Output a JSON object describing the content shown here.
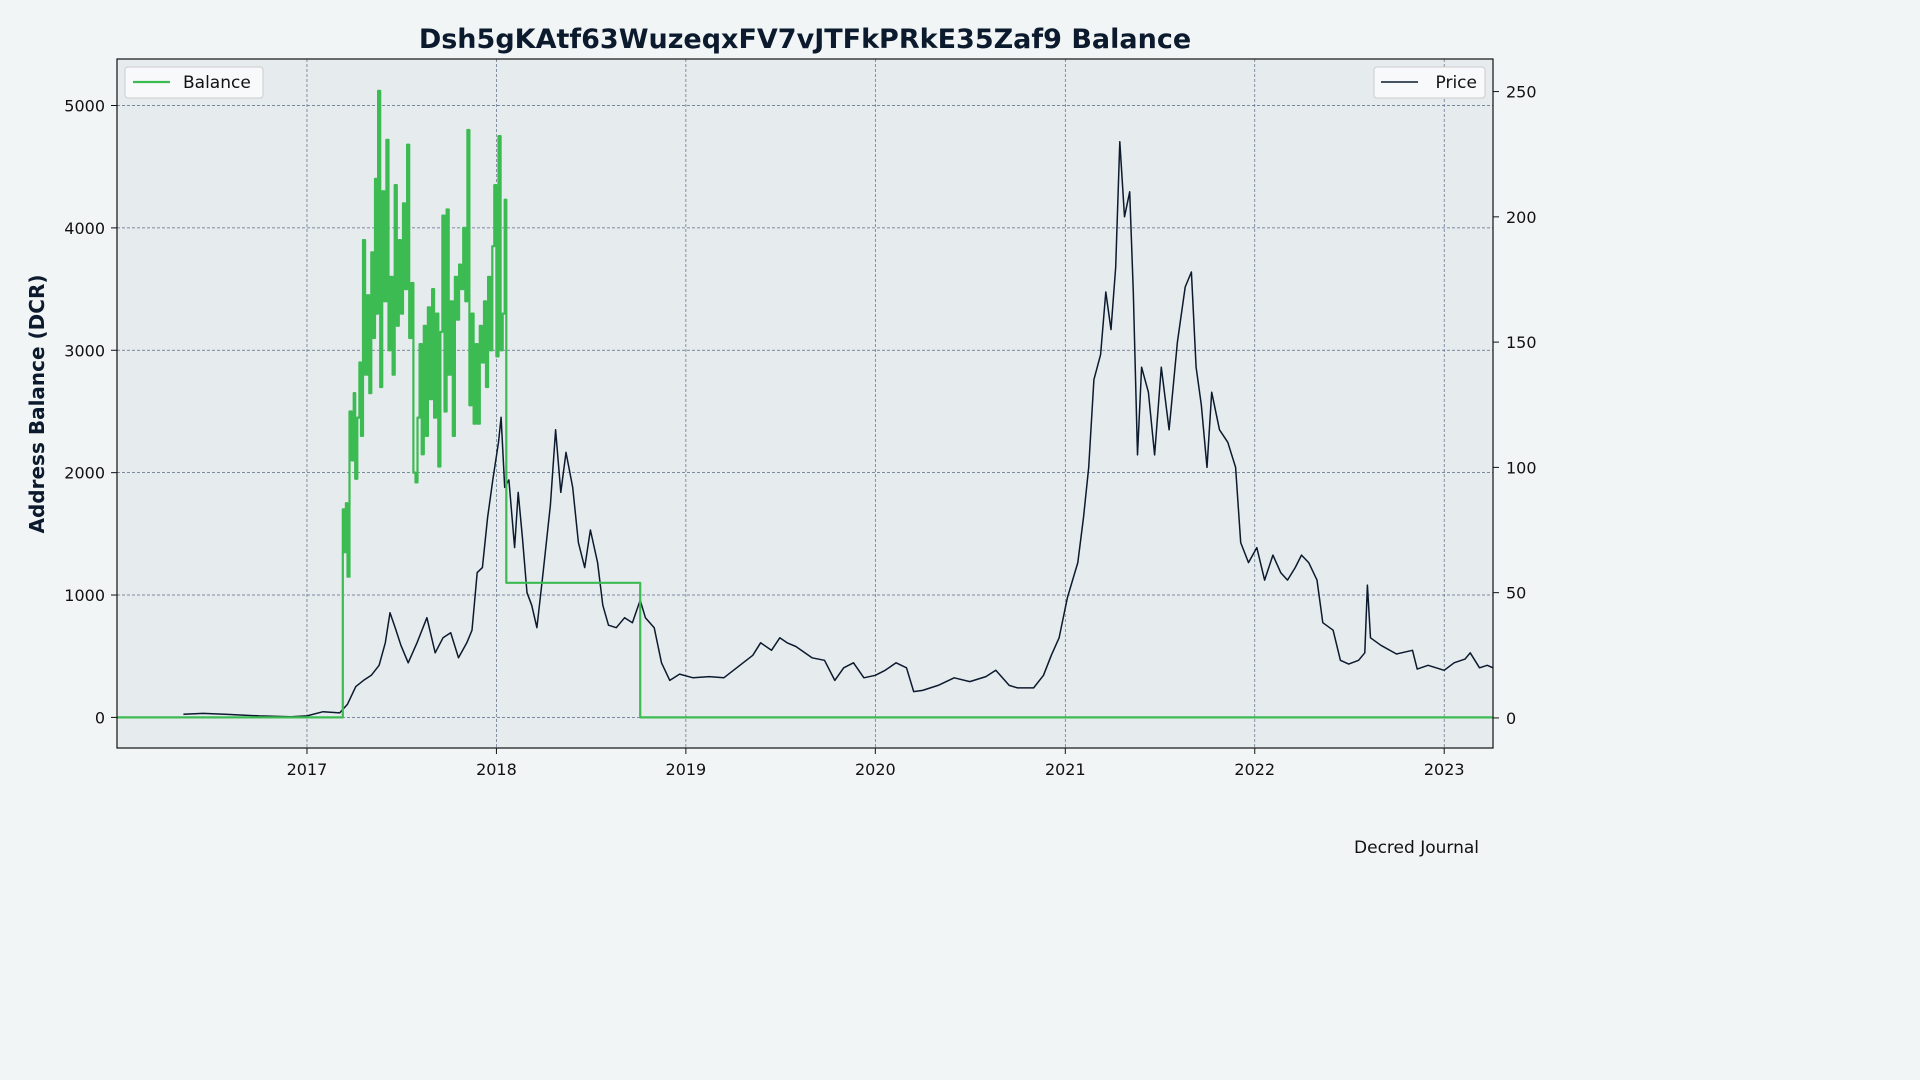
{
  "chart_data": {
    "type": "line",
    "title": "Dsh5gKAtf63WuzeqxFV7vJTFkPRkE35Zaf9 Balance",
    "ylabel": "Address Balance (DCR)",
    "y2label": "",
    "footer": "Decred Journal",
    "xlim": [
      "2016-01-01",
      "2023-04-05"
    ],
    "ylim": [
      -250,
      5380
    ],
    "y2lim": [
      -12,
      263
    ],
    "x_ticks": [
      "2017",
      "2018",
      "2019",
      "2020",
      "2021",
      "2022",
      "2023"
    ],
    "x_tick_dates": [
      "2017-01-01",
      "2018-01-01",
      "2019-01-01",
      "2020-01-01",
      "2021-01-01",
      "2022-01-01",
      "2023-01-01"
    ],
    "y_ticks": [
      0,
      1000,
      2000,
      3000,
      4000,
      5000
    ],
    "y2_ticks": [
      0,
      50,
      100,
      150,
      200,
      250
    ],
    "grid": true,
    "legend_balance_position": "top-left",
    "legend_price_position": "top-right",
    "colors": {
      "balance": "#3dbb53",
      "price": "#0c1a2e",
      "plot_bg": "#e6ebee",
      "page_bg": "#f2f5f6",
      "grid": "#5a6a82"
    },
    "series": [
      {
        "name": "Balance",
        "axis": "left",
        "step": true,
        "points": [
          [
            "2016-01-01",
            0
          ],
          [
            "2017-03-10",
            0
          ],
          [
            "2017-03-11",
            1700
          ],
          [
            "2017-03-14",
            1350
          ],
          [
            "2017-03-17",
            1750
          ],
          [
            "2017-03-20",
            1150
          ],
          [
            "2017-03-24",
            2500
          ],
          [
            "2017-03-28",
            2100
          ],
          [
            "2017-04-01",
            2650
          ],
          [
            "2017-04-04",
            1950
          ],
          [
            "2017-04-08",
            2450
          ],
          [
            "2017-04-12",
            2900
          ],
          [
            "2017-04-15",
            2300
          ],
          [
            "2017-04-19",
            3900
          ],
          [
            "2017-04-23",
            2800
          ],
          [
            "2017-04-27",
            3450
          ],
          [
            "2017-05-01",
            2650
          ],
          [
            "2017-05-05",
            3800
          ],
          [
            "2017-05-09",
            3100
          ],
          [
            "2017-05-12",
            4400
          ],
          [
            "2017-05-15",
            3300
          ],
          [
            "2017-05-18",
            5120
          ],
          [
            "2017-05-22",
            2700
          ],
          [
            "2017-05-26",
            4300
          ],
          [
            "2017-05-30",
            3400
          ],
          [
            "2017-06-03",
            4720
          ],
          [
            "2017-06-07",
            3000
          ],
          [
            "2017-06-11",
            3600
          ],
          [
            "2017-06-15",
            2800
          ],
          [
            "2017-06-19",
            4350
          ],
          [
            "2017-06-23",
            3200
          ],
          [
            "2017-06-27",
            3900
          ],
          [
            "2017-07-01",
            3300
          ],
          [
            "2017-07-05",
            4200
          ],
          [
            "2017-07-09",
            3500
          ],
          [
            "2017-07-13",
            4680
          ],
          [
            "2017-07-17",
            3100
          ],
          [
            "2017-07-21",
            3550
          ],
          [
            "2017-07-25",
            2000
          ],
          [
            "2017-07-29",
            1920
          ],
          [
            "2017-08-02",
            2450
          ],
          [
            "2017-08-06",
            3050
          ],
          [
            "2017-08-10",
            2150
          ],
          [
            "2017-08-14",
            3200
          ],
          [
            "2017-08-18",
            2300
          ],
          [
            "2017-08-22",
            3350
          ],
          [
            "2017-08-26",
            2600
          ],
          [
            "2017-08-30",
            3500
          ],
          [
            "2017-09-03",
            2450
          ],
          [
            "2017-09-07",
            3300
          ],
          [
            "2017-09-11",
            2050
          ],
          [
            "2017-09-15",
            3150
          ],
          [
            "2017-09-19",
            4100
          ],
          [
            "2017-09-23",
            2500
          ],
          [
            "2017-09-27",
            4150
          ],
          [
            "2017-10-01",
            2800
          ],
          [
            "2017-10-05",
            3400
          ],
          [
            "2017-10-09",
            2300
          ],
          [
            "2017-10-13",
            3600
          ],
          [
            "2017-10-17",
            3250
          ],
          [
            "2017-10-21",
            3700
          ],
          [
            "2017-10-25",
            3500
          ],
          [
            "2017-10-29",
            4000
          ],
          [
            "2017-11-02",
            3400
          ],
          [
            "2017-11-06",
            4800
          ],
          [
            "2017-11-10",
            2550
          ],
          [
            "2017-11-14",
            3300
          ],
          [
            "2017-11-18",
            2400
          ],
          [
            "2017-11-22",
            3050
          ],
          [
            "2017-11-26",
            2400
          ],
          [
            "2017-11-30",
            3200
          ],
          [
            "2017-12-04",
            2900
          ],
          [
            "2017-12-08",
            3400
          ],
          [
            "2017-12-12",
            2700
          ],
          [
            "2017-12-16",
            3600
          ],
          [
            "2017-12-20",
            3000
          ],
          [
            "2017-12-24",
            3850
          ],
          [
            "2017-12-28",
            4350
          ],
          [
            "2018-01-01",
            2950
          ],
          [
            "2018-01-05",
            4750
          ],
          [
            "2018-01-09",
            3000
          ],
          [
            "2018-01-13",
            3300
          ],
          [
            "2018-01-17",
            4230
          ],
          [
            "2018-01-20",
            1100
          ],
          [
            "2018-10-04",
            1100
          ],
          [
            "2018-10-05",
            0
          ],
          [
            "2023-04-05",
            0
          ]
        ]
      },
      {
        "name": "Price",
        "axis": "right",
        "step": false,
        "points": [
          [
            "2016-05-08",
            1.5
          ],
          [
            "2016-06-15",
            1.8
          ],
          [
            "2016-08-01",
            1.4
          ],
          [
            "2016-10-01",
            0.8
          ],
          [
            "2016-12-01",
            0.5
          ],
          [
            "2017-01-01",
            0.8
          ],
          [
            "2017-02-01",
            2.5
          ],
          [
            "2017-03-05",
            2.0
          ],
          [
            "2017-03-20",
            5.5
          ],
          [
            "2017-04-05",
            12.5
          ],
          [
            "2017-04-20",
            15.0
          ],
          [
            "2017-05-05",
            17.0
          ],
          [
            "2017-05-20",
            21.0
          ],
          [
            "2017-06-01",
            30.0
          ],
          [
            "2017-06-10",
            42.0
          ],
          [
            "2017-06-20",
            36.0
          ],
          [
            "2017-07-01",
            29.0
          ],
          [
            "2017-07-15",
            22.0
          ],
          [
            "2017-08-01",
            30.0
          ],
          [
            "2017-08-20",
            40.0
          ],
          [
            "2017-09-05",
            26.0
          ],
          [
            "2017-09-20",
            32.0
          ],
          [
            "2017-10-05",
            34.0
          ],
          [
            "2017-10-20",
            24.0
          ],
          [
            "2017-11-05",
            30.0
          ],
          [
            "2017-11-15",
            35.0
          ],
          [
            "2017-11-25",
            58.0
          ],
          [
            "2017-12-05",
            60.0
          ],
          [
            "2017-12-15",
            80.0
          ],
          [
            "2017-12-25",
            95.0
          ],
          [
            "2018-01-05",
            110.0
          ],
          [
            "2018-01-10",
            120.0
          ],
          [
            "2018-01-17",
            92.0
          ],
          [
            "2018-01-25",
            95.0
          ],
          [
            "2018-02-05",
            68.0
          ],
          [
            "2018-02-12",
            90.0
          ],
          [
            "2018-02-20",
            72.0
          ],
          [
            "2018-03-01",
            50.0
          ],
          [
            "2018-03-10",
            45.0
          ],
          [
            "2018-03-20",
            36.0
          ],
          [
            "2018-04-01",
            58.0
          ],
          [
            "2018-04-15",
            85.0
          ],
          [
            "2018-04-25",
            115.0
          ],
          [
            "2018-05-05",
            90.0
          ],
          [
            "2018-05-15",
            106.0
          ],
          [
            "2018-05-28",
            92.0
          ],
          [
            "2018-06-08",
            70.0
          ],
          [
            "2018-06-20",
            60.0
          ],
          [
            "2018-07-01",
            75.0
          ],
          [
            "2018-07-15",
            62.0
          ],
          [
            "2018-07-25",
            45.0
          ],
          [
            "2018-08-05",
            37.0
          ],
          [
            "2018-08-20",
            36.0
          ],
          [
            "2018-09-05",
            40.0
          ],
          [
            "2018-09-20",
            38.0
          ],
          [
            "2018-10-05",
            47.0
          ],
          [
            "2018-10-15",
            40.0
          ],
          [
            "2018-11-01",
            36.0
          ],
          [
            "2018-11-15",
            22.0
          ],
          [
            "2018-12-01",
            15.0
          ],
          [
            "2018-12-20",
            17.5
          ],
          [
            "2019-01-15",
            16.0
          ],
          [
            "2019-02-15",
            16.5
          ],
          [
            "2019-03-15",
            16.0
          ],
          [
            "2019-04-15",
            21.0
          ],
          [
            "2019-05-10",
            25.0
          ],
          [
            "2019-05-25",
            30.0
          ],
          [
            "2019-06-15",
            27.0
          ],
          [
            "2019-07-01",
            32.0
          ],
          [
            "2019-07-15",
            30.0
          ],
          [
            "2019-08-01",
            28.5
          ],
          [
            "2019-09-01",
            24.0
          ],
          [
            "2019-09-25",
            23.0
          ],
          [
            "2019-10-15",
            15.0
          ],
          [
            "2019-11-01",
            20.0
          ],
          [
            "2019-11-20",
            22.0
          ],
          [
            "2019-12-10",
            16.0
          ],
          [
            "2020-01-01",
            17.0
          ],
          [
            "2020-01-20",
            19.0
          ],
          [
            "2020-02-10",
            22.0
          ],
          [
            "2020-03-01",
            20.0
          ],
          [
            "2020-03-15",
            10.5
          ],
          [
            "2020-04-01",
            11.0
          ],
          [
            "2020-05-01",
            13.0
          ],
          [
            "2020-06-01",
            16.0
          ],
          [
            "2020-07-01",
            14.5
          ],
          [
            "2020-08-01",
            16.5
          ],
          [
            "2020-08-20",
            19.0
          ],
          [
            "2020-09-15",
            13.0
          ],
          [
            "2020-10-01",
            12.0
          ],
          [
            "2020-11-01",
            12.0
          ],
          [
            "2020-11-20",
            17.0
          ],
          [
            "2020-12-05",
            25.0
          ],
          [
            "2020-12-20",
            32.0
          ],
          [
            "2021-01-05",
            48.0
          ],
          [
            "2021-01-15",
            55.0
          ],
          [
            "2021-01-25",
            62.0
          ],
          [
            "2021-02-05",
            80.0
          ],
          [
            "2021-02-15",
            100.0
          ],
          [
            "2021-02-25",
            135.0
          ],
          [
            "2021-03-10",
            145.0
          ],
          [
            "2021-03-20",
            170.0
          ],
          [
            "2021-03-30",
            155.0
          ],
          [
            "2021-04-08",
            180.0
          ],
          [
            "2021-04-16",
            230.0
          ],
          [
            "2021-04-25",
            200.0
          ],
          [
            "2021-05-05",
            210.0
          ],
          [
            "2021-05-12",
            170.0
          ],
          [
            "2021-05-20",
            105.0
          ],
          [
            "2021-05-28",
            140.0
          ],
          [
            "2021-06-10",
            130.0
          ],
          [
            "2021-06-22",
            105.0
          ],
          [
            "2021-07-05",
            140.0
          ],
          [
            "2021-07-20",
            115.0
          ],
          [
            "2021-08-05",
            150.0
          ],
          [
            "2021-08-20",
            172.0
          ],
          [
            "2021-09-01",
            178.0
          ],
          [
            "2021-09-10",
            140.0
          ],
          [
            "2021-09-20",
            125.0
          ],
          [
            "2021-10-01",
            100.0
          ],
          [
            "2021-10-10",
            130.0
          ],
          [
            "2021-10-25",
            115.0
          ],
          [
            "2021-11-10",
            110.0
          ],
          [
            "2021-11-25",
            100.0
          ],
          [
            "2021-12-05",
            70.0
          ],
          [
            "2021-12-20",
            62.0
          ],
          [
            "2022-01-05",
            68.0
          ],
          [
            "2022-01-20",
            55.0
          ],
          [
            "2022-02-05",
            65.0
          ],
          [
            "2022-02-20",
            58.0
          ],
          [
            "2022-03-05",
            55.0
          ],
          [
            "2022-03-20",
            60.0
          ],
          [
            "2022-04-01",
            65.0
          ],
          [
            "2022-04-15",
            62.0
          ],
          [
            "2022-05-01",
            55.0
          ],
          [
            "2022-05-12",
            38.0
          ],
          [
            "2022-06-01",
            35.0
          ],
          [
            "2022-06-15",
            23.0
          ],
          [
            "2022-07-01",
            21.5
          ],
          [
            "2022-07-20",
            23.0
          ],
          [
            "2022-08-01",
            26.0
          ],
          [
            "2022-08-06",
            53.0
          ],
          [
            "2022-08-12",
            32.0
          ],
          [
            "2022-09-01",
            29.0
          ],
          [
            "2022-10-01",
            25.5
          ],
          [
            "2022-11-01",
            27.0
          ],
          [
            "2022-11-10",
            19.5
          ],
          [
            "2022-12-01",
            21.0
          ],
          [
            "2023-01-01",
            19.0
          ],
          [
            "2023-01-20",
            22.0
          ],
          [
            "2023-02-10",
            23.5
          ],
          [
            "2023-02-20",
            26.0
          ],
          [
            "2023-03-10",
            20.0
          ],
          [
            "2023-03-25",
            21.0
          ],
          [
            "2023-04-05",
            20.0
          ]
        ]
      }
    ]
  }
}
